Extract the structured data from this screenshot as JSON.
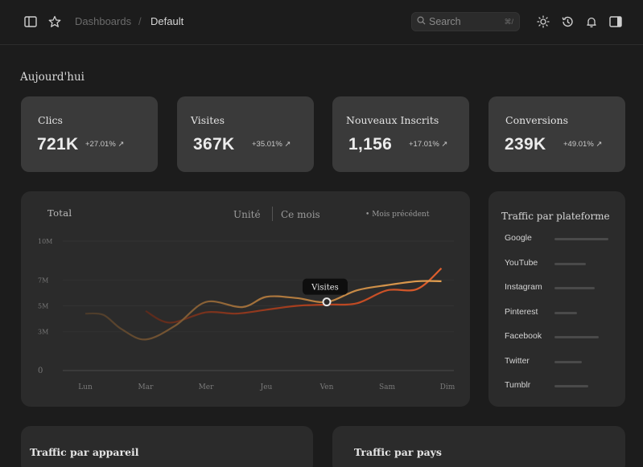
{
  "header": {
    "breadcrumb_root": "Dashboards",
    "breadcrumb_sep": "/",
    "breadcrumb_current": "Default",
    "search_placeholder": "Search",
    "search_shortcut": "⌘/"
  },
  "section_title": "Aujourd'hui",
  "kpis": [
    {
      "label": "Clics",
      "value": "721K",
      "delta": "+27.01%"
    },
    {
      "label": "Visites",
      "value": "367K",
      "delta": "+35.01%"
    },
    {
      "label": "Nouveaux Inscrits",
      "value": "1,156",
      "delta": "+17.01%"
    },
    {
      "label": "Conversions",
      "value": "239K",
      "delta": "+49.01%"
    }
  ],
  "chart": {
    "title": "Total",
    "tab_unit": "Unité",
    "tab_month": "Ce mois",
    "legend_prev": "Mois précédent",
    "tooltip": "Visites"
  },
  "chart_data": {
    "type": "line",
    "categories": [
      "Lun",
      "Mar",
      "Mer",
      "Jeu",
      "Ven",
      "Sam",
      "Dim"
    ],
    "ytick_labels": [
      "10M",
      "7M",
      "5M",
      "3M",
      "0"
    ],
    "ytick_values": [
      10,
      7,
      5,
      3,
      0
    ],
    "ylim": [
      0,
      10
    ],
    "series": [
      {
        "name": "Visites",
        "color": "#b07a3e",
        "x": [
          0,
          0.3,
          0.6,
          1.0,
          1.5,
          2.0,
          2.6,
          3.0,
          3.5,
          4.0,
          4.5,
          5.0,
          5.5,
          5.9
        ],
        "values": [
          4.4,
          4.3,
          3.2,
          2.4,
          3.5,
          5.3,
          4.9,
          5.7,
          5.6,
          5.3,
          6.2,
          6.6,
          6.9,
          6.9
        ]
      },
      {
        "name": "Mois précédent",
        "color": "#c24a24",
        "x": [
          1.0,
          1.4,
          2.0,
          2.5,
          3.0,
          3.5,
          4.0,
          4.5,
          5.0,
          5.5,
          5.9
        ],
        "values": [
          4.6,
          3.7,
          4.5,
          4.4,
          4.7,
          5.0,
          5.1,
          5.2,
          6.2,
          6.3,
          7.9
        ]
      }
    ],
    "highlight": {
      "series": "Visites",
      "x": 4.0,
      "y": 5.3
    }
  },
  "platforms": {
    "title": "Traffic par plateforme",
    "items": [
      {
        "label": "Google",
        "share": 0.95
      },
      {
        "label": "YouTube",
        "share": 0.55
      },
      {
        "label": "Instagram",
        "share": 0.71
      },
      {
        "label": "Pinterest",
        "share": 0.4
      },
      {
        "label": "Facebook",
        "share": 0.78
      },
      {
        "label": "Twitter",
        "share": 0.49
      },
      {
        "label": "Tumblr",
        "share": 0.6
      }
    ]
  },
  "bottom": {
    "device_title": "Traffic par appareil",
    "country_title": "Traffic par pays"
  }
}
